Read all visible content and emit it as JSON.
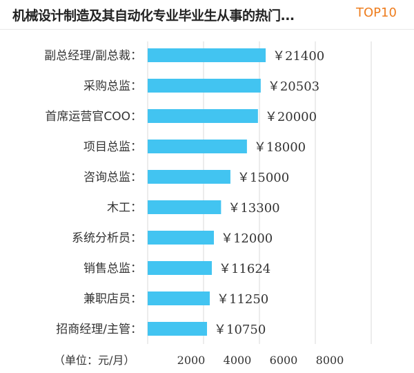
{
  "header": {
    "title": "机械设计制造及其自动化专业毕业生从事的热门...",
    "badge": "TOP10"
  },
  "chart_data": {
    "type": "bar",
    "orientation": "horizontal",
    "title": "",
    "unit_label": "（单位：元/月）",
    "categories": [
      "副总经理/副总裁：",
      "采购总监：",
      "首席运营官COO：",
      "项目总监：",
      "咨询总监：",
      "木工：",
      "系统分析员：",
      "销售总监：",
      "兼职店员：",
      "招商经理/主管："
    ],
    "values": [
      21400,
      20503,
      20000,
      18000,
      15000,
      13300,
      12000,
      11624,
      11250,
      10750
    ],
    "value_labels": [
      "￥21400",
      "￥20503",
      "￥20000",
      "￥18000",
      "￥15000",
      "￥13300",
      "￥12000",
      "￥11624",
      "￥11250",
      "￥10750"
    ],
    "x_ticks": [
      "2000",
      "4000",
      "6000",
      "8000"
    ],
    "x_tick_values": [
      2000,
      4000,
      6000,
      8000
    ],
    "bar_color": "#42c4f1",
    "grid": true
  }
}
